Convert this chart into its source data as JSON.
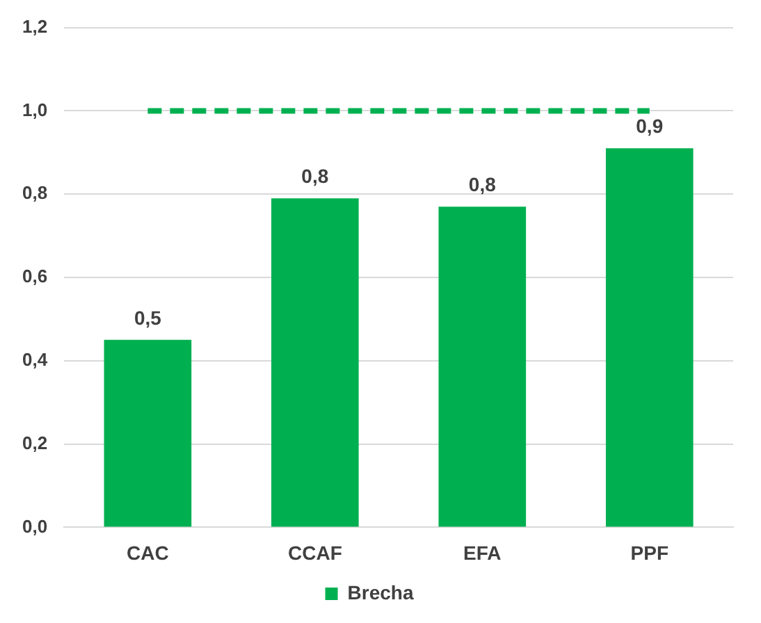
{
  "chart_data": {
    "type": "bar",
    "categories": [
      "CAC",
      "CCAF",
      "EFA",
      "PPF"
    ],
    "series": [
      {
        "name": "Brecha",
        "color": "#00b050",
        "values": [
          0.45,
          0.79,
          0.77,
          0.91
        ],
        "value_labels": [
          "0,5",
          "0,8",
          "0,8",
          "0,9"
        ]
      },
      {
        "type": "line",
        "color": "#00b050",
        "values": [
          1,
          1,
          1,
          1
        ],
        "line_style": "dashed",
        "marker": "none"
      }
    ],
    "ylim": [
      0,
      1.2
    ],
    "yticks": [
      {
        "value": 0,
        "label": "0,0"
      },
      {
        "value": 0.2,
        "label": "0,2"
      },
      {
        "value": 0.4,
        "label": "0,4"
      },
      {
        "value": 0.6,
        "label": "0,6"
      },
      {
        "value": 0.8,
        "label": "0,8"
      },
      {
        "value": 1,
        "label": "1,0"
      },
      {
        "value": 1.2,
        "label": "1,2"
      }
    ],
    "grid": "y",
    "legend": "bottom"
  }
}
